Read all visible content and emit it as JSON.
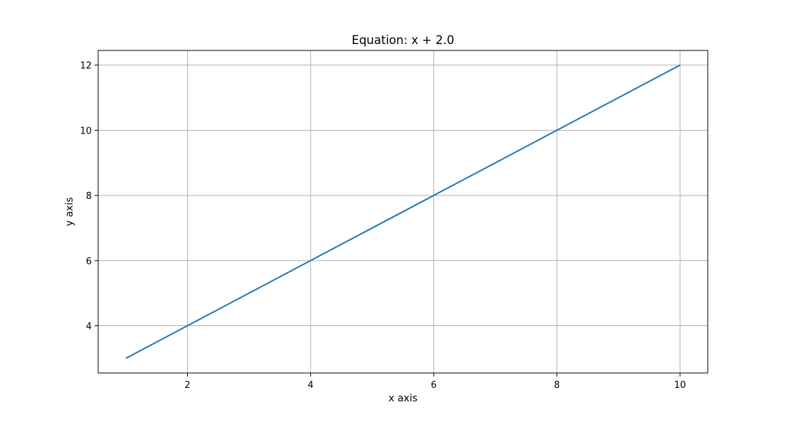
{
  "chart_data": {
    "type": "line",
    "title": "Equation: x + 2.0",
    "xlabel": "x axis",
    "ylabel": "y axis",
    "xlim": [
      0.55,
      10.45
    ],
    "ylim": [
      2.55,
      12.45
    ],
    "grid": true,
    "x_ticks": [
      2,
      4,
      6,
      8,
      10
    ],
    "y_ticks": [
      4,
      6,
      8,
      10,
      12
    ],
    "series": [
      {
        "color": "#1f77b4",
        "x": [
          1,
          2,
          3,
          4,
          5,
          6,
          7,
          8,
          9,
          10
        ],
        "y": [
          3,
          4,
          5,
          6,
          7,
          8,
          9,
          10,
          11,
          12
        ]
      }
    ]
  },
  "colors": {
    "grid": "#b0b0b0",
    "axes": "#000000",
    "line": "#1f77b4"
  }
}
